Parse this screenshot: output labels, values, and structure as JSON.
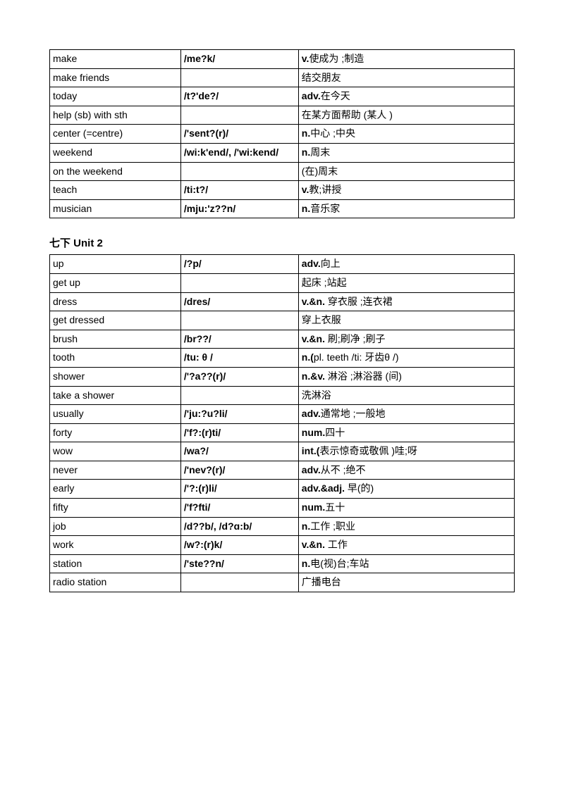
{
  "table1": {
    "rows": [
      {
        "word": "make",
        "pron": "/me?k/",
        "pos": "v.",
        "def": "使成为 ;制造"
      },
      {
        "word": "make friends",
        "pron": "",
        "pos": "",
        "def": "结交朋友"
      },
      {
        "word": "today",
        "pron": "/t?'de?/",
        "pos": "adv.",
        "def": "在今天"
      },
      {
        "word": "help (sb) with sth",
        "pron": "",
        "pos": "",
        "def": "在某方面帮助  (某人 )"
      },
      {
        "word": "center (=centre)",
        "pron": "/'sent?(r)/",
        "pos": "n.",
        "def": "中心 ;中央"
      },
      {
        "word": "weekend",
        "pron": "/wi:k'end/, /'wi:kend/",
        "pos": "n.",
        "def": "周末"
      },
      {
        "word": "on the weekend",
        "pron": "",
        "pos": "",
        "def": "(在)周末"
      },
      {
        "word": "teach",
        "pron": "/ti:t?/",
        "pos": "v.",
        "def": "教;讲授"
      },
      {
        "word": "musician",
        "pron": "/mju:'z??n/",
        "pos": "n.",
        "def": "音乐家"
      }
    ]
  },
  "heading2": "七下   Unit 2",
  "table2": {
    "rows": [
      {
        "word": "up",
        "pron": "/?p/",
        "pos": "adv.",
        "def": "向上"
      },
      {
        "word": "get up",
        "pron": "",
        "pos": "",
        "def": "起床 ;站起"
      },
      {
        "word": "dress",
        "pron": "/dres/",
        "pos": "v.&n.",
        "def": " 穿衣服 ;连衣裙"
      },
      {
        "word": "get dressed",
        "pron": "",
        "pos": "",
        "def": "穿上衣服"
      },
      {
        "word": "brush",
        "pron": "/br??/",
        "pos": "v.&n.",
        "def": " 刷;刷净 ;刷子"
      },
      {
        "word": "tooth",
        "pron": "/tu:  θ /",
        "pos": "n.(",
        "def": "pl. teeth /ti:     牙齿θ /)"
      },
      {
        "word": "shower",
        "pron": "/'?a??(r)/",
        "pos": "n.&v.",
        "def": " 淋浴 ;淋浴器  (间)"
      },
      {
        "word": "take a shower",
        "pron": "",
        "pos": "",
        "def": "洗淋浴"
      },
      {
        "word": "usually",
        "pron": "/'ju:?u?li/",
        "pos": "adv.",
        "def": "通常地 ;一般地"
      },
      {
        "word": "forty",
        "pron": "/'f?:(r)ti/",
        "pos": "num.",
        "def": "四十"
      },
      {
        "word": "wow",
        "pron": "/wa?/",
        "pos": "int.(",
        "def": "表示惊奇或敬佩   )哇;呀"
      },
      {
        "word": "never",
        "pron": "/'nev?(r)/",
        "pos": "adv.",
        "def": "从不 ;绝不"
      },
      {
        "word": "early",
        "pron": "/'?:(r)li/",
        "pos": "adv.&adj.",
        "def": " 早(的)"
      },
      {
        "word": "fifty",
        "pron": "/'f?fti/",
        "pos": "num.",
        "def": "五十"
      },
      {
        "word": "job",
        "pron": "/d??b/,       /d?ɑ:b/",
        "pos": "n.",
        "def": "工作 ;职业"
      },
      {
        "word": "work",
        "pron": "/w?:(r)k/",
        "pos": "v.&n.",
        "def": " 工作"
      },
      {
        "word": "station",
        "pron": "/'ste??n/",
        "pos": "n.",
        "def": "电(视)台;车站"
      },
      {
        "word": "radio station",
        "pron": "",
        "pos": "",
        "def": "广播电台"
      }
    ]
  }
}
